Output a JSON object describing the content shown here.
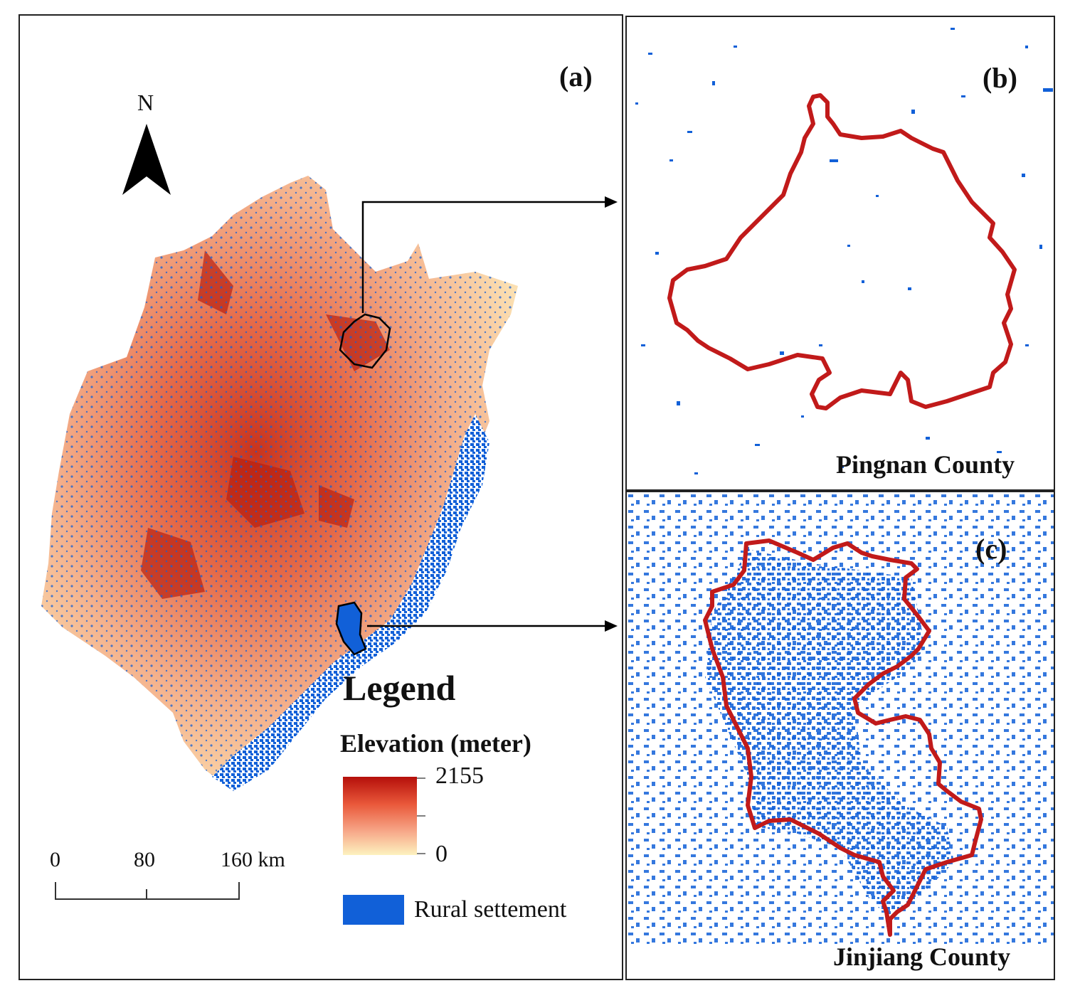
{
  "panels": {
    "a": {
      "label": "(a)"
    },
    "b": {
      "label": "(b)",
      "county": "Pingnan County"
    },
    "c": {
      "label": "(c)",
      "county": "Jinjiang County"
    }
  },
  "north_arrow": {
    "letter": "N"
  },
  "legend": {
    "title": "Legend",
    "elevation_title": "Elevation (meter)",
    "elevation_max": "2155",
    "elevation_min": "0",
    "elevation_colors": [
      "#b50f0a",
      "#e9583a",
      "#f7a889",
      "#fdf2bf"
    ],
    "settlement_label": "Rural settement",
    "settlement_color": "#1160d8"
  },
  "scale_bar": {
    "ticks": [
      "0",
      "80",
      "160 km"
    ]
  },
  "colors": {
    "boundary": "#c11a1a",
    "outline": "#000000"
  }
}
